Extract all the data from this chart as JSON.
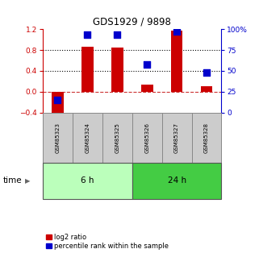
{
  "title": "GDS1929 / 9898",
  "samples": [
    "GSM85323",
    "GSM85324",
    "GSM85325",
    "GSM85326",
    "GSM85327",
    "GSM85328"
  ],
  "log2_ratio": [
    -0.5,
    0.87,
    0.85,
    0.13,
    1.18,
    0.1
  ],
  "percentile_rank": [
    15,
    93,
    93,
    58,
    97,
    48
  ],
  "left_ylim": [
    -0.4,
    1.2
  ],
  "right_ylim": [
    0,
    100
  ],
  "left_yticks": [
    -0.4,
    0,
    0.4,
    0.8,
    1.2
  ],
  "right_yticks": [
    0,
    25,
    50,
    75,
    100
  ],
  "right_yticklabels": [
    "0",
    "25",
    "50",
    "75",
    "100%"
  ],
  "dotted_lines": [
    0.4,
    0.8
  ],
  "zero_line": 0.0,
  "bar_color": "#cc0000",
  "dot_color": "#0000cc",
  "group_labels": [
    "6 h",
    "24 h"
  ],
  "group_ranges": [
    [
      0,
      3
    ],
    [
      3,
      6
    ]
  ],
  "group_colors": [
    "#bbffbb",
    "#44cc44"
  ],
  "time_label": "time",
  "legend_items": [
    "log2 ratio",
    "percentile rank within the sample"
  ],
  "bar_width": 0.4,
  "dot_size": 28,
  "bg_color": "#ffffff",
  "sample_box_facecolor": "#cccccc",
  "sample_box_edgecolor": "#888888"
}
